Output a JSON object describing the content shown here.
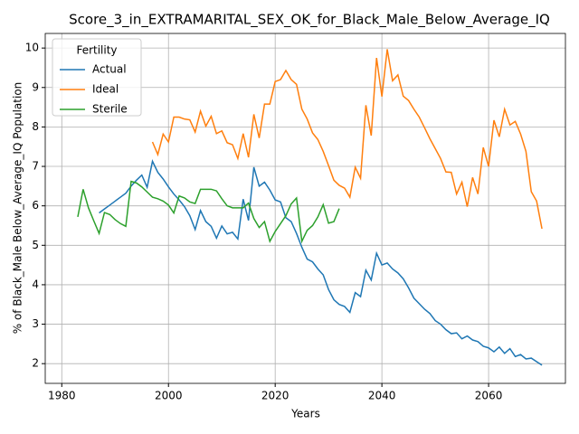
{
  "chart_data": {
    "type": "line",
    "title": "Score_3_in_EXTRAMARITAL_SEX_OK_for_Black_Male_Below_Average_IQ",
    "xlabel": "Years",
    "ylabel": "% of Black_Male Below_Average_IQ Population",
    "legend_title": "Fertility",
    "legend": "upper left",
    "grid": true,
    "x": [
      1983,
      1984,
      1985,
      1986,
      1987,
      1988,
      1989,
      1990,
      1991,
      1992,
      1993,
      1994,
      1995,
      1996,
      1997,
      1998,
      1999,
      2000,
      2001,
      2002,
      2003,
      2004,
      2005,
      2006,
      2007,
      2008,
      2009,
      2010,
      2011,
      2012,
      2013,
      2014,
      2015,
      2016,
      2017,
      2018,
      2019,
      2020,
      2021,
      2022,
      2023,
      2024,
      2025,
      2026,
      2027,
      2028,
      2029,
      2030,
      2031,
      2032,
      2033,
      2034,
      2035,
      2036,
      2037,
      2038,
      2039,
      2040,
      2041,
      2042,
      2043,
      2044,
      2045,
      2046,
      2047,
      2048,
      2049,
      2050,
      2051,
      2052,
      2053,
      2054,
      2055,
      2056,
      2057,
      2058,
      2059,
      2060,
      2061,
      2062,
      2063,
      2064,
      2065,
      2066,
      2067,
      2068,
      2069,
      2070
    ],
    "series": [
      {
        "name": "Actual",
        "color": "#1f77b4",
        "values": [
          null,
          null,
          null,
          null,
          5.82,
          5.92,
          6.02,
          6.12,
          6.22,
          6.32,
          6.5,
          6.65,
          6.78,
          6.47,
          7.13,
          6.85,
          6.68,
          6.48,
          6.3,
          6.15,
          5.98,
          5.75,
          5.4,
          5.88,
          5.6,
          5.48,
          5.18,
          5.49,
          5.29,
          5.33,
          5.16,
          6.17,
          5.63,
          6.98,
          6.5,
          6.6,
          6.4,
          6.15,
          6.1,
          5.7,
          5.6,
          5.3,
          4.95,
          4.65,
          4.58,
          4.4,
          4.25,
          3.88,
          3.62,
          3.5,
          3.45,
          3.3,
          3.8,
          3.7,
          4.37,
          4.12,
          4.8,
          4.5,
          4.55,
          4.4,
          4.3,
          4.15,
          3.92,
          3.66,
          3.52,
          3.38,
          3.27,
          3.09,
          3.0,
          2.86,
          2.76,
          2.78,
          2.63,
          2.7,
          2.6,
          2.56,
          2.44,
          2.4,
          2.3,
          2.42,
          2.26,
          2.38,
          2.18,
          2.23,
          2.12,
          2.14,
          2.05,
          1.96
        ]
      },
      {
        "name": "Ideal",
        "color": "#ff7f0e",
        "values": [
          null,
          null,
          null,
          null,
          null,
          null,
          null,
          null,
          null,
          null,
          null,
          null,
          null,
          null,
          7.62,
          7.3,
          7.82,
          7.62,
          8.25,
          8.25,
          8.2,
          8.18,
          7.87,
          8.4,
          8.02,
          8.27,
          7.83,
          7.9,
          7.6,
          7.55,
          7.2,
          7.83,
          7.23,
          8.32,
          7.72,
          8.58,
          8.58,
          9.15,
          9.2,
          9.43,
          9.2,
          9.08,
          8.45,
          8.2,
          7.85,
          7.68,
          7.38,
          7.02,
          6.65,
          6.52,
          6.45,
          6.22,
          6.98,
          6.7,
          8.55,
          7.78,
          9.75,
          8.77,
          9.97,
          9.17,
          9.32,
          8.78,
          8.67,
          8.45,
          8.25,
          7.98,
          7.7,
          7.45,
          7.2,
          6.86,
          6.85,
          6.3,
          6.6,
          5.98,
          6.72,
          6.3,
          7.48,
          7.0,
          8.17,
          7.75,
          8.45,
          8.05,
          8.14,
          7.82,
          7.38,
          6.36,
          6.12,
          5.42
        ]
      },
      {
        "name": "Sterile",
        "color": "#2ca02c",
        "values": [
          5.72,
          6.42,
          5.95,
          5.62,
          5.3,
          5.83,
          5.78,
          5.65,
          5.55,
          5.48,
          6.62,
          6.58,
          6.48,
          6.35,
          6.22,
          6.18,
          6.12,
          6.02,
          5.82,
          6.25,
          6.2,
          6.1,
          6.06,
          6.42,
          6.42,
          6.42,
          6.38,
          6.18,
          6.0,
          5.95,
          5.95,
          5.95,
          6.07,
          5.68,
          5.45,
          5.6,
          5.1,
          5.35,
          5.55,
          5.75,
          6.05,
          6.2,
          5.1,
          5.38,
          5.5,
          5.72,
          6.03,
          5.56,
          5.6,
          5.93,
          null,
          null,
          null,
          null,
          null,
          null,
          null,
          null,
          null,
          null,
          null,
          null,
          null,
          null,
          null,
          null,
          null,
          null,
          null,
          null,
          null,
          null,
          null,
          null,
          null,
          null,
          null,
          null,
          null,
          null,
          null,
          null,
          null,
          null,
          null,
          null,
          null,
          null
        ]
      }
    ],
    "xlim": [
      1976.9,
      2074.4
    ],
    "xticks": [
      1980,
      2000,
      2020,
      2040,
      2060
    ],
    "ylim": [
      1.5,
      10.37
    ],
    "yticks": [
      2,
      3,
      4,
      5,
      6,
      7,
      8,
      9,
      10
    ]
  }
}
